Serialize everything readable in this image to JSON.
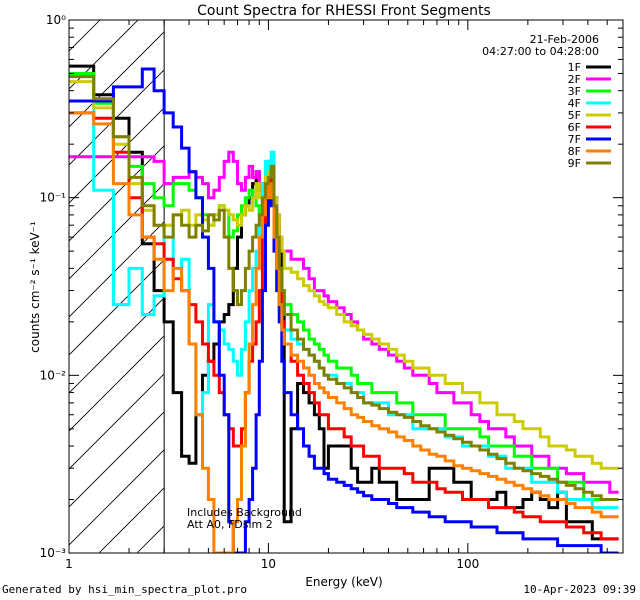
{
  "footer": {
    "generated_by": "Generated by hsi_min_spectra_plot.pro",
    "date": "10-Apr-2023 09:39"
  },
  "chart_data": {
    "type": "line",
    "title": "Count Spectra for RHESSI Front Segments",
    "xlabel": "Energy (keV)",
    "ylabel": "counts cm⁻² s⁻¹ keV⁻¹",
    "x_scale": "log",
    "y_scale": "log",
    "xlim": [
      1,
      600
    ],
    "ylim": [
      0.001,
      1
    ],
    "x_ticks": [
      1,
      10,
      100
    ],
    "y_ticks": [
      0.001,
      0.01,
      0.1,
      1
    ],
    "y_tick_labels": [
      "10⁻³",
      "10⁻²",
      "10⁻¹",
      "10⁰"
    ],
    "grid": false,
    "legend_placement": "top-right",
    "header_lines": [
      "21-Feb-2006",
      "04:27:00 to 04:28:00"
    ],
    "annotations": [
      "Includes Background",
      "Att A0, FDsim 2"
    ],
    "shaded_region": {
      "style": "hatched",
      "x_range": [
        1,
        3
      ]
    },
    "x_edges": [
      1,
      1.33,
      1.67,
      2,
      2.33,
      2.67,
      3,
      3.33,
      3.67,
      4,
      4.33,
      4.67,
      5,
      5.33,
      5.67,
      6,
      6.33,
      6.67,
      7,
      7.33,
      7.67,
      8,
      8.33,
      8.67,
      9,
      9.33,
      9.67,
      10,
      10.33,
      10.67,
      11,
      11.33,
      11.67,
      12,
      13,
      14,
      15,
      16,
      17,
      18,
      19,
      20,
      22,
      24,
      26,
      28,
      30,
      33,
      36,
      40,
      44,
      48,
      53,
      58,
      64,
      70,
      77,
      85,
      94,
      104,
      115,
      127,
      140,
      155,
      171,
      189,
      209,
      231,
      255,
      282,
      312,
      345,
      381,
      421,
      466,
      515,
      570
    ],
    "series": [
      {
        "name": "1F",
        "color": "#000000",
        "values": [
          0.55,
          0.38,
          0.28,
          0.18,
          0.055,
          0.03,
          0.02,
          0.008,
          0.0035,
          0.0032,
          0.006,
          0.01,
          0.012,
          0.015,
          0.02,
          0.022,
          0.025,
          0.04,
          0.06,
          0.08,
          0.09,
          0.1,
          0.12,
          0.14,
          0.11,
          0.09,
          0.1,
          0.16,
          0.14,
          0.1,
          0.08,
          0.05,
          0.03,
          0.0015,
          0.005,
          0.009,
          0.008,
          0.007,
          0.006,
          0.005,
          0.003,
          0.004,
          0.004,
          0.004,
          0.003,
          0.0025,
          0.0025,
          0.003,
          0.0025,
          0.0025,
          0.002,
          0.002,
          0.002,
          0.002,
          0.003,
          0.003,
          0.003,
          0.0025,
          0.0025,
          0.002,
          0.002,
          0.002,
          0.0022,
          0.0018,
          0.0018,
          0.002,
          0.0022,
          0.002,
          0.0018,
          0.0022,
          0.0015,
          0.0015,
          0.0015,
          0.0012,
          0.0012,
          0.0012
        ]
      },
      {
        "name": "2F",
        "color": "#ff00ff",
        "values": [
          0.17,
          0.17,
          0.17,
          0.17,
          0.17,
          0.16,
          0.12,
          0.13,
          0.13,
          0.14,
          0.13,
          0.12,
          0.1,
          0.11,
          0.13,
          0.16,
          0.18,
          0.16,
          0.12,
          0.11,
          0.13,
          0.15,
          0.13,
          0.14,
          0.12,
          0.11,
          0.13,
          0.14,
          0.15,
          0.09,
          0.07,
          0.06,
          0.05,
          0.05,
          0.045,
          0.045,
          0.04,
          0.035,
          0.03,
          0.03,
          0.028,
          0.026,
          0.024,
          0.022,
          0.02,
          0.018,
          0.016,
          0.015,
          0.014,
          0.013,
          0.012,
          0.011,
          0.01,
          0.01,
          0.009,
          0.008,
          0.008,
          0.007,
          0.007,
          0.006,
          0.0055,
          0.005,
          0.005,
          0.0045,
          0.004,
          0.004,
          0.0035,
          0.0035,
          0.003,
          0.003,
          0.0028,
          0.0028,
          0.0025,
          0.0025,
          0.0025,
          0.0022
        ]
      },
      {
        "name": "3F",
        "color": "#00ff00",
        "values": [
          0.5,
          0.34,
          0.22,
          0.15,
          0.12,
          0.1,
          0.09,
          0.12,
          0.12,
          0.11,
          0.1,
          0.08,
          0.07,
          0.08,
          0.09,
          0.085,
          0.06,
          0.065,
          0.08,
          0.09,
          0.1,
          0.11,
          0.1,
          0.09,
          0.08,
          0.07,
          0.09,
          0.1,
          0.12,
          0.08,
          0.06,
          0.04,
          0.03,
          0.025,
          0.022,
          0.02,
          0.018,
          0.016,
          0.015,
          0.014,
          0.013,
          0.012,
          0.011,
          0.011,
          0.01,
          0.009,
          0.009,
          0.008,
          0.008,
          0.008,
          0.007,
          0.007,
          0.006,
          0.006,
          0.006,
          0.006,
          0.005,
          0.005,
          0.005,
          0.005,
          0.0045,
          0.004,
          0.004,
          0.004,
          0.0035,
          0.0035,
          0.003,
          0.003,
          0.003,
          0.0025,
          0.0025,
          0.0025,
          0.002,
          0.002,
          0.002,
          0.002
        ]
      },
      {
        "name": "4F",
        "color": "#00ffff",
        "values": [
          0.35,
          0.11,
          0.025,
          0.04,
          0.022,
          0.028,
          0.07,
          0.04,
          0.045,
          0.015,
          0.006,
          0.008,
          0.025,
          0.02,
          0.018,
          0.015,
          0.014,
          0.012,
          0.01,
          0.014,
          0.02,
          0.03,
          0.04,
          0.05,
          0.07,
          0.12,
          0.16,
          0.13,
          0.18,
          0.07,
          0.04,
          0.025,
          0.02,
          0.018,
          0.016,
          0.015,
          0.014,
          0.013,
          0.012,
          0.011,
          0.01,
          0.01,
          0.009,
          0.009,
          0.008,
          0.008,
          0.007,
          0.007,
          0.007,
          0.006,
          0.006,
          0.006,
          0.005,
          0.005,
          0.005,
          0.005,
          0.0045,
          0.0045,
          0.004,
          0.004,
          0.004,
          0.0035,
          0.0035,
          0.003,
          0.003,
          0.003,
          0.0025,
          0.0025,
          0.0025,
          0.0022,
          0.002,
          0.002,
          0.002,
          0.0018,
          0.0018,
          0.0018
        ]
      },
      {
        "name": "5F",
        "color": "#cccc00",
        "values": [
          0.45,
          0.32,
          0.2,
          0.12,
          0.085,
          0.07,
          0.07,
          0.08,
          0.085,
          0.07,
          0.08,
          0.075,
          0.07,
          0.08,
          0.09,
          0.085,
          0.08,
          0.075,
          0.07,
          0.08,
          0.09,
          0.085,
          0.1,
          0.12,
          0.1,
          0.09,
          0.13,
          0.14,
          0.15,
          0.1,
          0.08,
          0.06,
          0.05,
          0.04,
          0.038,
          0.035,
          0.032,
          0.03,
          0.028,
          0.026,
          0.025,
          0.024,
          0.022,
          0.02,
          0.019,
          0.018,
          0.017,
          0.016,
          0.015,
          0.014,
          0.013,
          0.012,
          0.011,
          0.011,
          0.01,
          0.01,
          0.009,
          0.009,
          0.008,
          0.008,
          0.007,
          0.007,
          0.006,
          0.006,
          0.0055,
          0.005,
          0.005,
          0.0045,
          0.004,
          0.004,
          0.0038,
          0.0035,
          0.0035,
          0.0032,
          0.003,
          0.003
        ]
      },
      {
        "name": "6F",
        "color": "#ff0000",
        "values": [
          0.3,
          0.28,
          0.18,
          0.1,
          0.06,
          0.055,
          0.045,
          0.035,
          0.03,
          0.025,
          0.02,
          0.015,
          0.012,
          0.01,
          0.008,
          0.006,
          0.005,
          0.004,
          0.004,
          0.005,
          0.008,
          0.012,
          0.015,
          0.02,
          0.03,
          0.06,
          0.09,
          0.12,
          0.14,
          0.08,
          0.05,
          0.03,
          0.02,
          0.015,
          0.012,
          0.01,
          0.009,
          0.008,
          0.007,
          0.006,
          0.006,
          0.005,
          0.005,
          0.0045,
          0.004,
          0.004,
          0.0035,
          0.0035,
          0.003,
          0.003,
          0.003,
          0.0028,
          0.0025,
          0.0025,
          0.0025,
          0.0023,
          0.0022,
          0.0022,
          0.002,
          0.002,
          0.002,
          0.0018,
          0.0018,
          0.0018,
          0.0017,
          0.0016,
          0.0016,
          0.0015,
          0.0015,
          0.0015,
          0.0014,
          0.0014,
          0.0013,
          0.0013,
          0.0012,
          0.0012
        ]
      },
      {
        "name": "7F",
        "color": "#0000ff",
        "values": [
          0.35,
          0.35,
          0.42,
          0.42,
          0.53,
          0.4,
          0.3,
          0.25,
          0.19,
          0.14,
          0.1,
          0.06,
          0.04,
          0.02,
          0.01,
          0.006,
          0.0015,
          0.001,
          0.001,
          0.001,
          0.0015,
          0.002,
          0.003,
          0.006,
          0.012,
          0.03,
          0.07,
          0.12,
          0.09,
          0.05,
          0.03,
          0.02,
          0.012,
          0.008,
          0.006,
          0.005,
          0.004,
          0.0035,
          0.003,
          0.003,
          0.0028,
          0.0026,
          0.0025,
          0.0024,
          0.0023,
          0.0022,
          0.0021,
          0.002,
          0.002,
          0.0019,
          0.0018,
          0.0018,
          0.0017,
          0.0017,
          0.0016,
          0.0016,
          0.0015,
          0.0015,
          0.0015,
          0.0014,
          0.0014,
          0.0014,
          0.0013,
          0.0013,
          0.0013,
          0.0012,
          0.0012,
          0.0012,
          0.0012,
          0.0011,
          0.0011,
          0.0011,
          0.0011,
          0.0011,
          0.001,
          0.001
        ]
      },
      {
        "name": "8F",
        "color": "#ff8000",
        "values": [
          0.3,
          0.26,
          0.12,
          0.08,
          0.06,
          0.045,
          0.03,
          0.04,
          0.03,
          0.015,
          0.006,
          0.003,
          0.002,
          0.001,
          0.001,
          0.001,
          0.001,
          0.0015,
          0.002,
          0.004,
          0.008,
          0.015,
          0.025,
          0.04,
          0.06,
          0.08,
          0.1,
          0.12,
          0.1,
          0.06,
          0.04,
          0.025,
          0.018,
          0.015,
          0.013,
          0.012,
          0.011,
          0.01,
          0.009,
          0.0085,
          0.008,
          0.0075,
          0.007,
          0.0065,
          0.006,
          0.0058,
          0.0055,
          0.0052,
          0.005,
          0.0048,
          0.0045,
          0.0043,
          0.004,
          0.0038,
          0.0036,
          0.0035,
          0.0033,
          0.0031,
          0.003,
          0.0029,
          0.0028,
          0.0027,
          0.0026,
          0.0025,
          0.0024,
          0.0023,
          0.0022,
          0.0021,
          0.002,
          0.002,
          0.0019,
          0.0018,
          0.0018,
          0.0017,
          0.0016,
          0.0016
        ]
      },
      {
        "name": "9F",
        "color": "#808000",
        "values": [
          0.48,
          0.36,
          0.22,
          0.13,
          0.09,
          0.07,
          0.06,
          0.08,
          0.07,
          0.06,
          0.07,
          0.065,
          0.08,
          0.075,
          0.085,
          0.06,
          0.04,
          0.03,
          0.025,
          0.03,
          0.04,
          0.05,
          0.06,
          0.07,
          0.08,
          0.1,
          0.12,
          0.13,
          0.15,
          0.09,
          0.06,
          0.04,
          0.03,
          0.022,
          0.018,
          0.016,
          0.014,
          0.013,
          0.012,
          0.011,
          0.01,
          0.0095,
          0.009,
          0.0085,
          0.008,
          0.0075,
          0.007,
          0.0068,
          0.0065,
          0.0062,
          0.006,
          0.0058,
          0.0055,
          0.0052,
          0.005,
          0.0048,
          0.0046,
          0.0044,
          0.0042,
          0.004,
          0.0038,
          0.0036,
          0.0034,
          0.0032,
          0.003,
          0.0029,
          0.0028,
          0.0027,
          0.0026,
          0.0025,
          0.0024,
          0.0023,
          0.0022,
          0.0021,
          0.002,
          0.002
        ]
      }
    ]
  }
}
